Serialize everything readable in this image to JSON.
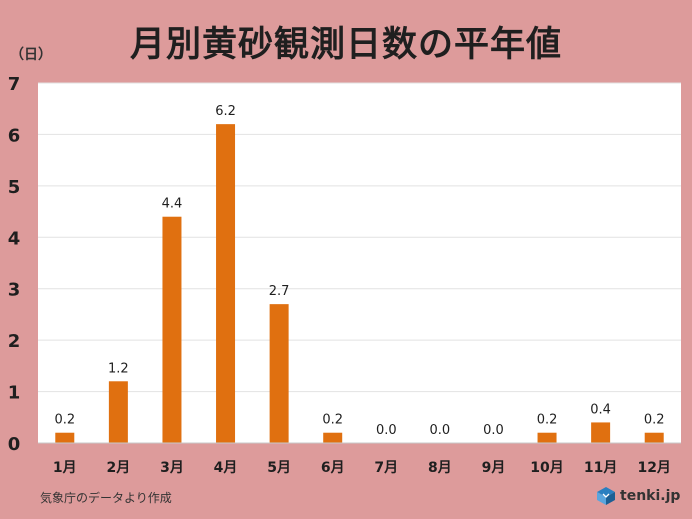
{
  "title": "月別黄砂観測日数の平年値",
  "unit_label": "（日）",
  "source": "気象庁のデータより作成",
  "brand": {
    "name": "tenki.jp",
    "icon": "tenki-cube-logo-icon"
  },
  "colors": {
    "background": "#dd9b9b",
    "plot_background": "#ffffff",
    "bar": "#e07010",
    "grid": "#e2e2e2",
    "text": "#1f1f1f"
  },
  "chart_data": {
    "type": "bar",
    "title": "月別黄砂観測日数の平年値",
    "xlabel": "",
    "ylabel": "（日）",
    "categories": [
      "1月",
      "2月",
      "3月",
      "4月",
      "5月",
      "6月",
      "7月",
      "8月",
      "9月",
      "10月",
      "11月",
      "12月"
    ],
    "values": [
      0.2,
      1.2,
      4.4,
      6.2,
      2.7,
      0.2,
      0.0,
      0.0,
      0.0,
      0.2,
      0.4,
      0.2
    ],
    "data_labels": [
      "0.2",
      "1.2",
      "4.4",
      "6.2",
      "2.7",
      "0.2",
      "0.0",
      "0.0",
      "0.0",
      "0.2",
      "0.4",
      "0.2"
    ],
    "y_ticks": [
      "0",
      "1",
      "2",
      "3",
      "4",
      "5",
      "6",
      "7"
    ],
    "ylim": [
      0,
      7
    ],
    "grid": true,
    "legend": "none"
  }
}
